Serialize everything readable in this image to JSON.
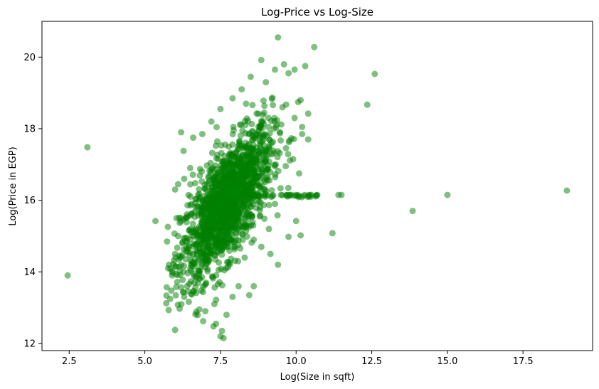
{
  "chart_data": {
    "type": "scatter",
    "title": "Log-Price vs Log-Size",
    "xlabel": "Log(Size in sqft)",
    "ylabel": "Log(Price in EGP)",
    "xlim": [
      1.6,
      19.8
    ],
    "ylim": [
      11.8,
      21.0
    ],
    "xticks": [
      2.5,
      5.0,
      7.5,
      10.0,
      12.5,
      15.0,
      17.5
    ],
    "xtick_labels": [
      "2.5",
      "5.0",
      "7.5",
      "10.0",
      "12.5",
      "15.0",
      "17.5"
    ],
    "yticks": [
      12,
      14,
      16,
      18,
      20
    ],
    "ytick_labels": [
      "12",
      "14",
      "16",
      "18",
      "20"
    ],
    "grid": false,
    "legend": "none",
    "point_color": "#008000",
    "point_alpha": 0.5,
    "series": [
      {
        "values": [
          [
            2.45,
            13.9
          ],
          [
            3.1,
            17.48
          ],
          [
            5.35,
            15.42
          ],
          [
            6.2,
            17.9
          ],
          [
            6.28,
            17.38
          ],
          [
            6.15,
            12.97
          ],
          [
            6.3,
            13.3
          ],
          [
            6.55,
            13.38
          ],
          [
            6.8,
            12.95
          ],
          [
            6.7,
            12.88
          ],
          [
            7.0,
            12.9
          ],
          [
            7.3,
            13.1
          ],
          [
            7.35,
            12.55
          ],
          [
            7.5,
            12.2
          ],
          [
            7.55,
            12.35
          ],
          [
            7.6,
            12.15
          ],
          [
            7.7,
            12.8
          ],
          [
            7.9,
            13.3
          ],
          [
            8.1,
            13.6
          ],
          [
            8.45,
            13.35
          ],
          [
            8.6,
            13.6
          ],
          [
            8.85,
            14.7
          ],
          [
            9.15,
            14.5
          ],
          [
            9.4,
            14.2
          ],
          [
            9.75,
            14.98
          ],
          [
            10.0,
            15.42
          ],
          [
            10.15,
            15.02
          ],
          [
            11.2,
            15.08
          ],
          [
            9.5,
            16.15
          ],
          [
            9.8,
            16.15
          ],
          [
            10.0,
            16.15
          ],
          [
            10.5,
            16.15
          ],
          [
            10.7,
            16.15
          ],
          [
            11.4,
            16.15
          ],
          [
            11.5,
            16.15
          ],
          [
            10.1,
            16.75
          ],
          [
            10.4,
            17.7
          ],
          [
            10.2,
            18.05
          ],
          [
            10.4,
            18.42
          ],
          [
            10.15,
            18.8
          ],
          [
            10.3,
            19.75
          ],
          [
            10.6,
            20.28
          ],
          [
            9.4,
            20.55
          ],
          [
            8.85,
            19.92
          ],
          [
            9.75,
            19.55
          ],
          [
            9.95,
            19.65
          ],
          [
            12.35,
            18.67
          ],
          [
            12.6,
            19.53
          ],
          [
            13.85,
            15.7
          ],
          [
            15.0,
            16.15
          ],
          [
            18.95,
            16.27
          ],
          [
            9.9,
            17.15
          ],
          [
            10.2,
            17.85
          ],
          [
            9.55,
            18.6
          ],
          [
            9.95,
            18.3
          ],
          [
            6.6,
            17.75
          ],
          [
            6.9,
            17.85
          ],
          [
            7.2,
            18.2
          ],
          [
            7.5,
            18.55
          ],
          [
            7.9,
            18.85
          ],
          [
            8.2,
            19.1
          ],
          [
            8.5,
            19.45
          ],
          [
            9.0,
            19.3
          ],
          [
            9.3,
            19.65
          ],
          [
            9.6,
            19.8
          ],
          [
            5.8,
            14.2
          ],
          [
            5.9,
            13.9
          ],
          [
            6.0,
            14.5
          ],
          [
            6.1,
            15.0
          ],
          [
            6.05,
            15.5
          ],
          [
            6.0,
            16.3
          ],
          [
            6.1,
            16.45
          ],
          [
            6.3,
            16.6
          ],
          [
            6.5,
            16.9
          ],
          [
            6.4,
            13.6
          ],
          [
            8.8,
            15.55
          ],
          [
            9.1,
            15.2
          ],
          [
            8.3,
            14.4
          ],
          [
            8.6,
            14.9
          ],
          [
            9.3,
            15.9
          ]
        ]
      }
    ],
    "cloud": {
      "description_free": true,
      "points": 1600
    }
  }
}
